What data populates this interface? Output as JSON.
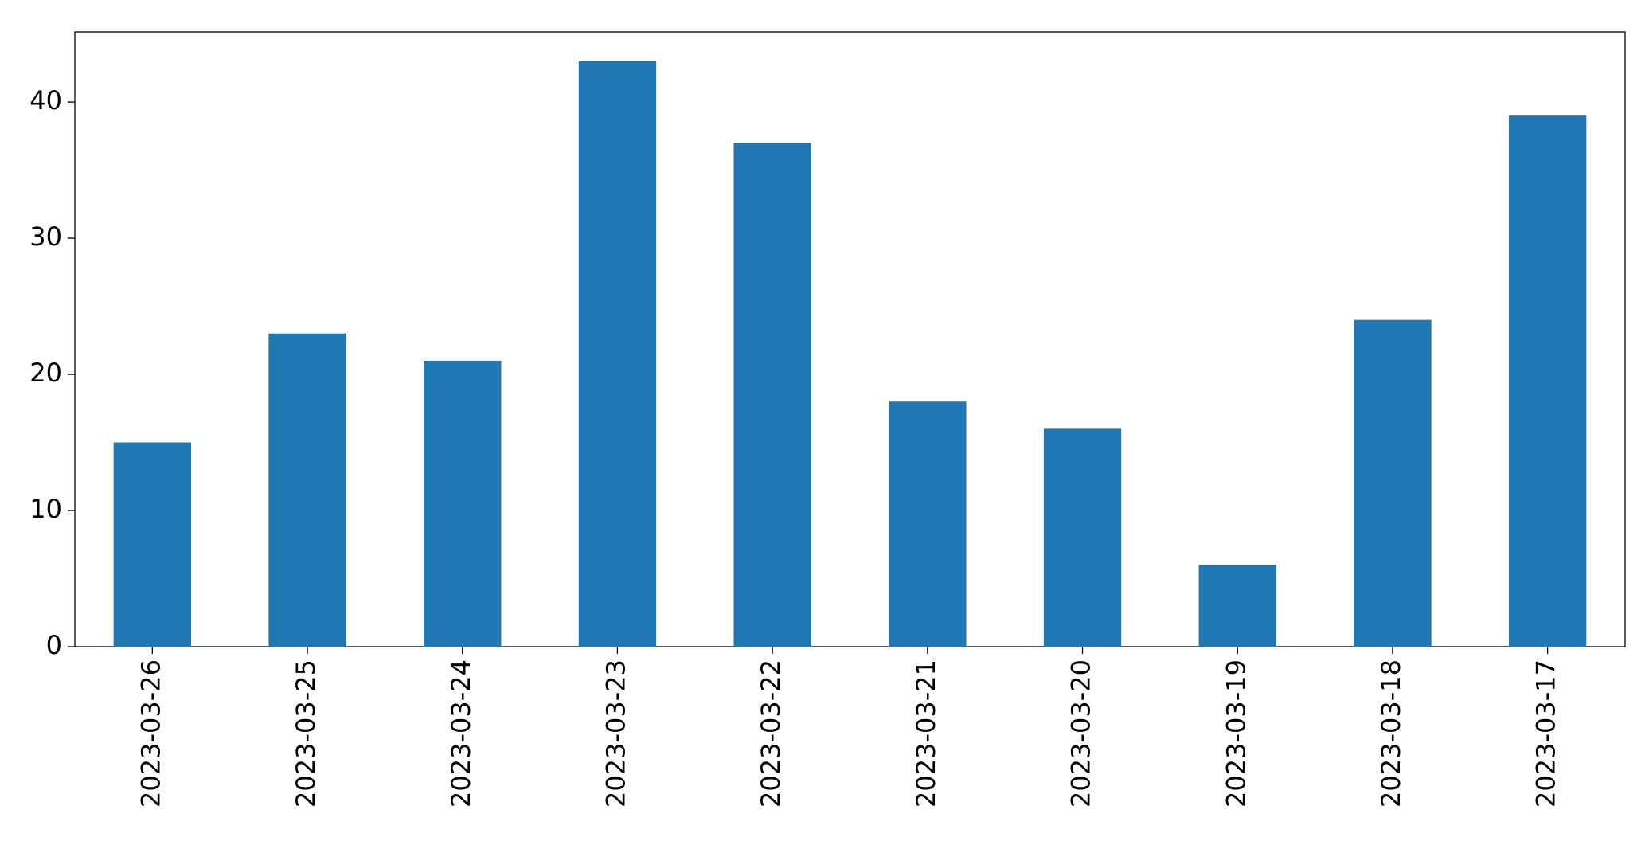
{
  "chart_data": {
    "type": "bar",
    "categories": [
      "2023-03-26",
      "2023-03-25",
      "2023-03-24",
      "2023-03-23",
      "2023-03-22",
      "2023-03-21",
      "2023-03-20",
      "2023-03-19",
      "2023-03-18",
      "2023-03-17"
    ],
    "values": [
      15,
      23,
      21,
      43,
      37,
      18,
      16,
      6,
      24,
      39
    ],
    "color": "#1f77b4",
    "ylim": [
      0,
      45.15
    ],
    "yticks": [
      0,
      10,
      20,
      30,
      40
    ],
    "grid": false
  }
}
